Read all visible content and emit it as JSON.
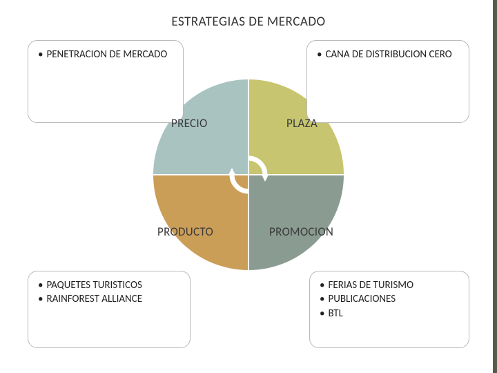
{
  "title": "ESTRATEGIAS DE MERCADO",
  "circle": {
    "quadrants": {
      "top_left": {
        "label": "PRECIO",
        "color": "#a9c3c1"
      },
      "top_right": {
        "label": "PLAZA",
        "color": "#c7c56f"
      },
      "bottom_left": {
        "label": "PRODUCTO",
        "color": "#cb9e58"
      },
      "bottom_right": {
        "label": "PROMOCION",
        "color": "#8a9b92"
      }
    },
    "cycle_arrow_color": "#ffffff"
  },
  "boxes": {
    "top_left": {
      "items": [
        {
          "text": "PENETRACION DE MERCADO"
        }
      ]
    },
    "top_right": {
      "items": [
        {
          "text": "CANA DE DISTRIBUCION CERO"
        }
      ]
    },
    "bottom_left": {
      "items": [
        {
          "text": "PAQUETES TURISTICOS"
        },
        {
          "text": "RAINFOREST ALLIANCE"
        }
      ]
    },
    "bottom_right": {
      "items": [
        {
          "text": "FERIAS DE TURISMO"
        },
        {
          "text": "PUBLICACIONES"
        },
        {
          "text": "BTL"
        }
      ]
    }
  },
  "sidebar_color": "#5a5a4a"
}
